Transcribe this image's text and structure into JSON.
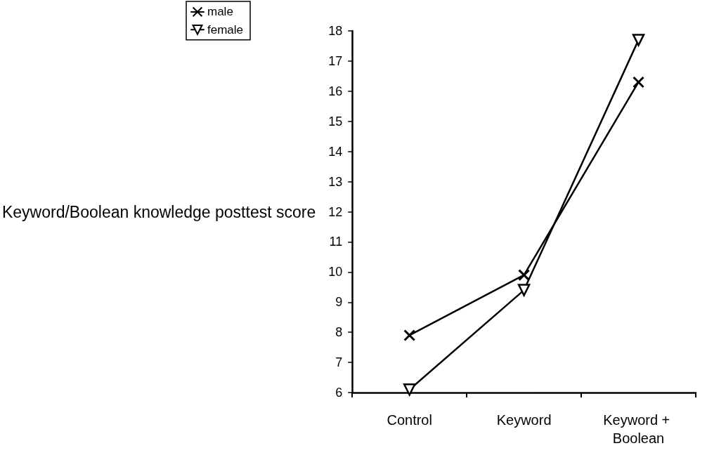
{
  "chart_data": {
    "type": "line",
    "ylabel": "Keyword/Boolean knowledge posttest score",
    "categories": [
      "Control",
      "Keyword",
      "Keyword + Boolean"
    ],
    "series": [
      {
        "name": "male",
        "color": "#000000",
        "marker": "cross",
        "values": [
          7.9,
          9.9,
          16.3
        ]
      },
      {
        "name": "female",
        "color": "#000000",
        "marker": "triangle",
        "values": [
          6.1,
          9.4,
          17.7
        ]
      }
    ],
    "ylim": [
      6,
      18
    ],
    "yticks": [
      6,
      7,
      8,
      9,
      10,
      11,
      12,
      13,
      14,
      15,
      16,
      17,
      18
    ],
    "grid": false,
    "legend": "top left"
  }
}
